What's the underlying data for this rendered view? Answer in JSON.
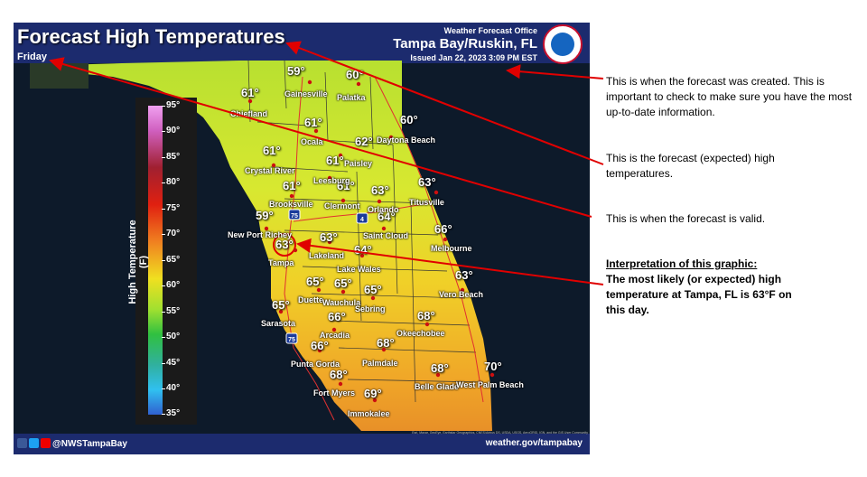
{
  "header": {
    "title": "Forecast High Temperatures",
    "valid_day": "Friday",
    "office_line": "Weather Forecast Office",
    "office_location": "Tampa Bay/Ruskin, FL",
    "issued": "Issued Jan 22, 2023 3:09 PM EST"
  },
  "legend": {
    "title": "High Temperature (F)",
    "ticks": [
      "95°",
      "90°",
      "85°",
      "80°",
      "75°",
      "70°",
      "65°",
      "60°",
      "55°",
      "50°",
      "45°",
      "40°",
      "35°"
    ]
  },
  "map": {
    "temps": [
      "59°",
      "60°",
      "61°",
      "61°",
      "62°",
      "60°",
      "61°",
      "61°",
      "61°",
      "61°",
      "63°",
      "63°",
      "59°",
      "64°",
      "63°",
      "63°",
      "64°",
      "66°",
      "63°",
      "65°",
      "65°",
      "65°",
      "65°",
      "66°",
      "68°",
      "66°",
      "68°",
      "68°",
      "70°",
      "68°",
      "69°"
    ],
    "cities": [
      "Gainesville",
      "Palatka",
      "Chiefland",
      "Ocala",
      "Daytona Beach",
      "Paisley",
      "Crystal River",
      "Leesburg",
      "Brooksville",
      "Clermont",
      "Orlando",
      "Titusville",
      "New Port Richey",
      "Saint Cloud",
      "Melbourne",
      "Tampa",
      "Lakeland",
      "Lake Wales",
      "Vero Beach",
      "Duette",
      "Wauchula",
      "Sebring",
      "Sarasota",
      "Arcadia",
      "Okeechobee",
      "Punta Gorda",
      "Palmdale",
      "Belle Glade",
      "West Palm Beach",
      "Fort Myers",
      "Immokalee"
    ],
    "interstate_shields": [
      "75",
      "4",
      "75"
    ],
    "credit": "Esri, Maxar, GeoEye, Earthstar Geographics, CNES/Airbus DS, USDA, USGS, AeroGRID, IGN, and the GIS User Community"
  },
  "footer": {
    "handle": "@NWSTampaBay",
    "url": "weather.gov/tampabay"
  },
  "annotations": {
    "issued_note": "This is when the forecast was created.  This is important to check to make sure you have the most up-to-date information.",
    "temps_note": "This is the forecast (expected) high temperatures.",
    "valid_note": "This is when the forecast is valid.",
    "interp_heading": "Interpretation of this graphic:",
    "interp_body": "The most likely (or expected) high temperature at Tampa, FL is 63°F on this day."
  },
  "colors": {
    "arrow": "#e00000",
    "banner": "#1c2b6e",
    "highlight_circle": "#e00000"
  }
}
